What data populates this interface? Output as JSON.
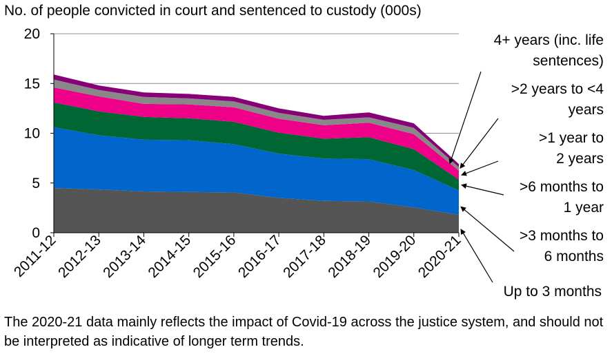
{
  "chart_data": {
    "type": "area",
    "stacked": true,
    "title": "No. of people convicted in court and sentenced to custody (000s)",
    "categories": [
      "2011-12",
      "2012-13",
      "2013-14",
      "2014-15",
      "2015-16",
      "2016-17",
      "2017-18",
      "2018-19",
      "2019-20",
      "2020-21"
    ],
    "ylim": [
      0,
      20
    ],
    "yticks": [
      "0",
      "5",
      "10",
      "15",
      "20"
    ],
    "grid": true,
    "legend": "right, arrow-labelled",
    "series": [
      {
        "name": "Up to 3 months",
        "color": "#555555",
        "values": [
          4.5,
          4.35,
          4.15,
          4.1,
          4.05,
          3.5,
          3.2,
          3.15,
          2.55,
          1.8
        ]
      },
      {
        "name": ">3 months to 6 months",
        "color": "#0066cc",
        "values": [
          6.1,
          5.45,
          5.2,
          5.2,
          4.85,
          4.45,
          4.25,
          4.25,
          3.75,
          2.45
        ]
      },
      {
        "name": ">6 months to 1 year",
        "color": "#006633",
        "values": [
          2.5,
          2.4,
          2.3,
          2.2,
          2.25,
          2.1,
          2.0,
          2.2,
          2.1,
          1.1
        ]
      },
      {
        "name": ">1 year to 2 years",
        "color": "#ee0088",
        "values": [
          1.5,
          1.5,
          1.3,
          1.4,
          1.45,
          1.4,
          1.35,
          1.45,
          1.5,
          0.9
        ]
      },
      {
        "name": ">2 years to <4 years",
        "color": "#888888",
        "values": [
          0.8,
          0.65,
          0.7,
          0.6,
          0.6,
          0.6,
          0.55,
          0.55,
          0.65,
          0.35
        ]
      },
      {
        "name": "4+ years (inc. life sentences)",
        "color": "#880077",
        "values": [
          0.5,
          0.45,
          0.45,
          0.45,
          0.45,
          0.45,
          0.4,
          0.5,
          0.45,
          0.3
        ]
      }
    ]
  },
  "labels": {
    "s5_line1": "4+ years (inc. life",
    "s5_line2": "sentences)",
    "s4_line1": ">2 years to <4",
    "s4_line2": "years",
    "s3_line1": ">1 year to",
    "s3_line2": "2 years",
    "s2_line1": ">6 months to",
    "s2_line2": "1 year",
    "s1_line1": ">3 months to",
    "s1_line2": "6 months",
    "s0_line1": "Up to 3 months"
  },
  "note": "The 2020-21 data mainly reflects the impact of Covid-19 across the justice system, and should not be interpreted as indicative of longer term trends."
}
